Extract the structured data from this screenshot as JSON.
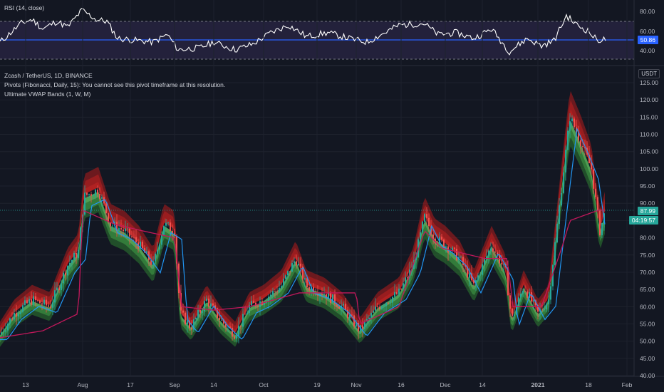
{
  "rsi": {
    "label": "RSI (14, close)",
    "ticks": [
      "80.00",
      "60.00",
      "40.00"
    ],
    "value_tag": "50.86",
    "value": 50.86,
    "colors": {
      "line": "#ffffff",
      "mid": "#2962ff",
      "band": "#7e57c2"
    }
  },
  "main": {
    "symbol_line": "Zcash / TetherUS, 1D, BINANCE",
    "pivots_line": "Pivots (Fibonacci, Daily, 15): You cannot see this pivot timeframe at this resolution.",
    "vwap_line": "Ultimate VWAP Bands (1, W, M)",
    "currency_button": "USDT",
    "price_ticks": [
      "125.00",
      "120.00",
      "115.00",
      "110.00",
      "105.00",
      "100.00",
      "95.00",
      "90.00",
      "85.00",
      "80.00",
      "75.00",
      "70.00",
      "65.00",
      "60.00",
      "55.00",
      "50.00",
      "45.00",
      "40.00"
    ],
    "price_tag": "87.99",
    "countdown_tag": "04:19:57",
    "colors": {
      "up": "#26a69a",
      "down": "#ef5350",
      "tag": "#26a69a"
    }
  },
  "time_axis": {
    "labels": [
      "13",
      "Aug",
      "17",
      "Sep",
      "14",
      "Oct",
      "19",
      "Nov",
      "16",
      "Dec",
      "14",
      "2021",
      "18",
      "Feb"
    ]
  },
  "chart_data": [
    {
      "type": "line",
      "title": "RSI (14, close)",
      "ylim": [
        30,
        90
      ],
      "levels": [
        70,
        50,
        30
      ],
      "last": 50.86
    },
    {
      "type": "candlestick",
      "title": "Zcash / TetherUS, 1D, BINANCE",
      "ylim": [
        40,
        125
      ],
      "last_price": 87.99,
      "approx_close_path": [
        {
          "x": "2020-07-06",
          "y": 52
        },
        {
          "x": "2020-07-20",
          "y": 62
        },
        {
          "x": "2020-08-02",
          "y": 76
        },
        {
          "x": "2020-08-08",
          "y": 94
        },
        {
          "x": "2020-08-16",
          "y": 82
        },
        {
          "x": "2020-08-30",
          "y": 82
        },
        {
          "x": "2020-09-03",
          "y": 58
        },
        {
          "x": "2020-09-23",
          "y": 54
        },
        {
          "x": "2020-10-01",
          "y": 62
        },
        {
          "x": "2020-10-22",
          "y": 74
        },
        {
          "x": "2020-11-05",
          "y": 53
        },
        {
          "x": "2020-11-25",
          "y": 85
        },
        {
          "x": "2020-12-05",
          "y": 78
        },
        {
          "x": "2020-12-14",
          "y": 66
        },
        {
          "x": "2020-12-30",
          "y": 58
        },
        {
          "x": "2021-01-11",
          "y": 63
        },
        {
          "x": "2021-01-15",
          "y": 115
        },
        {
          "x": "2021-01-23",
          "y": 88
        }
      ]
    }
  ]
}
